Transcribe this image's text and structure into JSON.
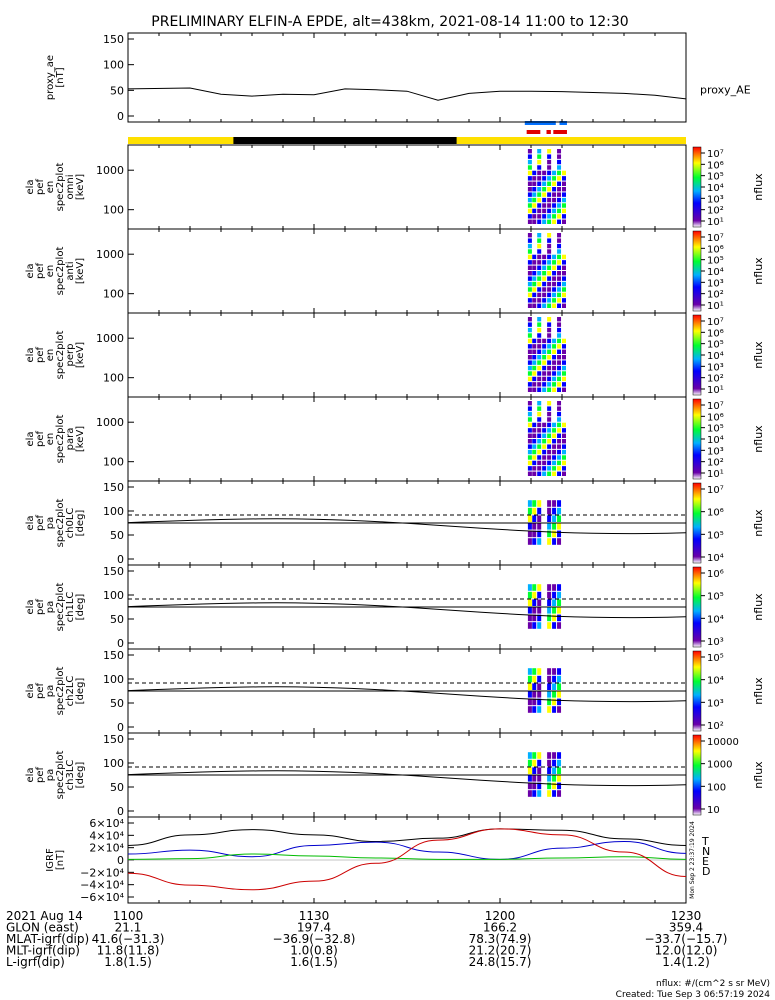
{
  "title": "PRELIMINARY ELFIN-A EPDE, alt=438km, 2021-08-14 11:00 to 12:30",
  "chart_data": [
    {
      "type": "line",
      "name": "proxy_ae",
      "ylabel": [
        "proxy_ae",
        "[nT]"
      ],
      "yticks": [
        "150",
        "100",
        "50",
        "0"
      ],
      "ylim": [
        0,
        160
      ],
      "legend": "proxy_AE",
      "x_minutes": [
        0,
        10,
        15,
        20,
        25,
        30,
        35,
        40,
        45,
        50,
        55,
        60,
        65,
        70,
        75,
        80,
        85,
        90
      ],
      "values": [
        60,
        62,
        48,
        44,
        48,
        47,
        60,
        58,
        55,
        35,
        50,
        55,
        55,
        54,
        52,
        50,
        46,
        38
      ]
    },
    {
      "type": "heatmap",
      "ylabel": [
        "ela",
        "pef",
        "en",
        "spec2plot",
        "omni",
        "[keV]"
      ],
      "yticks": [
        "1000",
        "100"
      ],
      "colorbar_label": "nflux",
      "colorbar_ticks": [
        "10⁷",
        "10⁶",
        "10⁵",
        "10⁴",
        "10³",
        "10²",
        "10¹"
      ]
    },
    {
      "type": "heatmap",
      "ylabel": [
        "ela",
        "pef",
        "en",
        "spec2plot",
        "anti",
        "[keV]"
      ],
      "yticks": [
        "1000",
        "100"
      ],
      "colorbar_label": "nflux",
      "colorbar_ticks": [
        "10⁷",
        "10⁶",
        "10⁵",
        "10⁴",
        "10³",
        "10²",
        "10¹"
      ]
    },
    {
      "type": "heatmap",
      "ylabel": [
        "ela",
        "pef",
        "en",
        "spec2plot",
        "perp",
        "[keV]"
      ],
      "yticks": [
        "1000",
        "100"
      ],
      "colorbar_label": "nflux",
      "colorbar_ticks": [
        "10⁷",
        "10⁶",
        "10⁵",
        "10⁴",
        "10³",
        "10²",
        "10¹"
      ]
    },
    {
      "type": "heatmap",
      "ylabel": [
        "ela",
        "pef",
        "en",
        "spec2plot",
        "para",
        "[keV]"
      ],
      "yticks": [
        "1000",
        "100"
      ],
      "colorbar_label": "nflux",
      "colorbar_ticks": [
        "10⁷",
        "10⁶",
        "10⁵",
        "10⁴",
        "10³",
        "10²",
        "10¹"
      ]
    },
    {
      "type": "heatmap",
      "ylabel": [
        "ela",
        "pef",
        "pa",
        "spec2plot",
        "ch0LC",
        "[deg]"
      ],
      "yticks": [
        "150",
        "100",
        "50",
        "0"
      ],
      "colorbar_label": "nflux",
      "colorbar_ticks": [
        "10⁷",
        "10⁶",
        "10⁵",
        "10⁴"
      ]
    },
    {
      "type": "heatmap",
      "ylabel": [
        "ela",
        "pef",
        "pa",
        "spec2plot",
        "ch1LC",
        "[deg]"
      ],
      "yticks": [
        "150",
        "100",
        "50",
        "0"
      ],
      "colorbar_label": "nflux",
      "colorbar_ticks": [
        "10⁶",
        "10⁵",
        "10⁴",
        "10³"
      ]
    },
    {
      "type": "heatmap",
      "ylabel": [
        "ela",
        "pef",
        "pa",
        "spec2plot",
        "ch2LC",
        "[deg]"
      ],
      "yticks": [
        "150",
        "100",
        "50",
        "0"
      ],
      "colorbar_label": "nflux",
      "colorbar_ticks": [
        "10⁵",
        "10⁴",
        "10³",
        "10²"
      ]
    },
    {
      "type": "heatmap",
      "ylabel": [
        "ela",
        "pef",
        "pa",
        "spec2plot",
        "ch3LC",
        "[deg]"
      ],
      "yticks": [
        "150",
        "100",
        "50",
        "0"
      ],
      "colorbar_label": "nflux",
      "colorbar_ticks": [
        "10000",
        "1000",
        "100",
        "10"
      ]
    },
    {
      "type": "line",
      "name": "IGRF",
      "ylabel": [
        "IGRF",
        "[nT]"
      ],
      "yticks": [
        "6×10⁴",
        "4×10⁴",
        "2×10⁴",
        "0",
        "−2×10⁴",
        "−4×10⁴",
        "−6×10⁴"
      ],
      "ylim": [
        -65000,
        65000
      ],
      "legend": [
        "T",
        "N",
        "E",
        "D"
      ],
      "colors": {
        "T": "#000000",
        "N": "#0000cc",
        "E": "#00bb00",
        "D": "#cc0000"
      },
      "x_minutes": [
        0,
        10,
        20,
        30,
        40,
        50,
        60,
        70,
        80,
        90
      ],
      "series": [
        {
          "name": "T",
          "values": [
            22000,
            38000,
            46000,
            38000,
            28000,
            33000,
            47000,
            45000,
            32000,
            22000
          ]
        },
        {
          "name": "N",
          "values": [
            9000,
            15000,
            5000,
            22000,
            27000,
            12000,
            1000,
            18000,
            28000,
            10000
          ]
        },
        {
          "name": "E",
          "values": [
            1000,
            2000,
            9000,
            6000,
            3000,
            1000,
            1000,
            3000,
            5000,
            1000
          ]
        },
        {
          "name": "D",
          "values": [
            -20000,
            -38000,
            -45000,
            -32000,
            -5000,
            30000,
            47000,
            38000,
            12000,
            -25000
          ]
        }
      ]
    }
  ],
  "xaxis": {
    "ticks": [
      "1100",
      "1130",
      "1200",
      "1230"
    ],
    "rows": [
      {
        "label": "2021 Aug 14",
        "values": [
          "",
          "",
          "",
          ""
        ]
      },
      {
        "label": "GLON (east)",
        "values": [
          "21.1",
          "197.4",
          "166.2",
          "359.4"
        ]
      },
      {
        "label": "MLAT-igrf(dip)",
        "values": [
          "41.6(−31.3)",
          "−36.9(−32.8)",
          "78.3(74.9)",
          "−33.7(−15.7)"
        ]
      },
      {
        "label": "MLT-igrf(dip)",
        "values": [
          "11.8(11.8)",
          "1.0(0.8)",
          "21.2(20.7)",
          "12.0(12.0)"
        ]
      },
      {
        "label": "L-igrf(dip)",
        "values": [
          "1.8(1.5)",
          "1.6(1.5)",
          "24.8(15.7)",
          "1.4(1.2)"
        ]
      }
    ]
  },
  "footer": {
    "units": "nflux: #/(cm^2 s sr MeV)",
    "created": "Created: Tue Sep  3 06:57:19 2024",
    "side_stamp": "Mon Sep  2 23:37:19 2024"
  }
}
